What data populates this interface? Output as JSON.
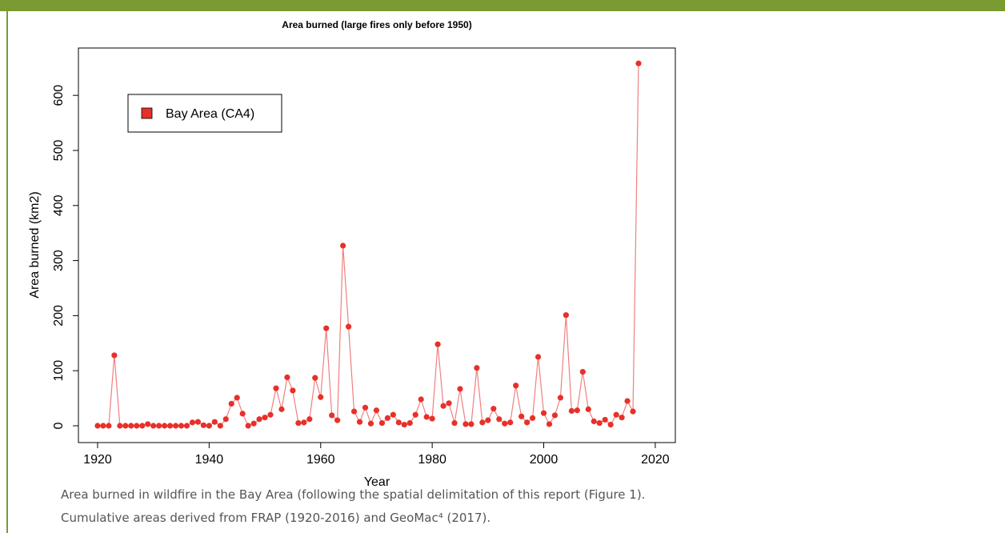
{
  "chart_data": {
    "type": "line",
    "title": "Area burned (large fires only before 1950)",
    "xlabel": "Year",
    "ylabel": "Area burned (km2)",
    "x": [
      1920,
      1921,
      1922,
      1923,
      1924,
      1925,
      1926,
      1927,
      1928,
      1929,
      1930,
      1931,
      1932,
      1933,
      1934,
      1935,
      1936,
      1937,
      1938,
      1939,
      1940,
      1941,
      1942,
      1943,
      1944,
      1945,
      1946,
      1947,
      1948,
      1949,
      1950,
      1951,
      1952,
      1953,
      1954,
      1955,
      1956,
      1957,
      1958,
      1959,
      1960,
      1961,
      1962,
      1963,
      1964,
      1965,
      1966,
      1967,
      1968,
      1969,
      1970,
      1971,
      1972,
      1973,
      1974,
      1975,
      1976,
      1977,
      1978,
      1979,
      1980,
      1981,
      1982,
      1983,
      1984,
      1985,
      1986,
      1987,
      1988,
      1989,
      1990,
      1991,
      1992,
      1993,
      1994,
      1995,
      1996,
      1997,
      1998,
      1999,
      2000,
      2001,
      2002,
      2003,
      2004,
      2005,
      2006,
      2007,
      2008,
      2009,
      2010,
      2011,
      2012,
      2013,
      2014,
      2015,
      2016,
      2017
    ],
    "series": [
      {
        "name": "Bay Area (CA4)",
        "color": "#e8302a",
        "line_color": "#f08080",
        "values": [
          0,
          0,
          0,
          128,
          0,
          0,
          0,
          0,
          0,
          3,
          0,
          0,
          0,
          0,
          0,
          0,
          0,
          6,
          7,
          1,
          0,
          7,
          0,
          12,
          40,
          51,
          22,
          0,
          4,
          12,
          15,
          20,
          68,
          30,
          88,
          64,
          5,
          6,
          12,
          87,
          52,
          177,
          19,
          10,
          327,
          180,
          26,
          7,
          33,
          4,
          28,
          5,
          14,
          20,
          6,
          2,
          5,
          20,
          48,
          16,
          13,
          148,
          36,
          41,
          5,
          67,
          3,
          3,
          105,
          6,
          10,
          31,
          12,
          4,
          6,
          73,
          17,
          6,
          14,
          125,
          23,
          3,
          19,
          51,
          201,
          27,
          28,
          98,
          30,
          8,
          5,
          11,
          2,
          20,
          15,
          45,
          26,
          658
        ]
      }
    ],
    "xlim": [
      1916.56,
      2023.6
    ],
    "ylim": [
      -30.5,
      686
    ],
    "xticks": [
      1920,
      1940,
      1960,
      1980,
      2000,
      2020
    ],
    "yticks": [
      0,
      100,
      200,
      300,
      400,
      500,
      600
    ],
    "legend": "top-left"
  },
  "caption": [
    "Area burned in wildfire in the Bay Area (following the spatial delimitation of this report (Figure 1).",
    "Cumulative areas derived from FRAP (1920-2016) and GeoMac⁴ (2017)."
  ]
}
